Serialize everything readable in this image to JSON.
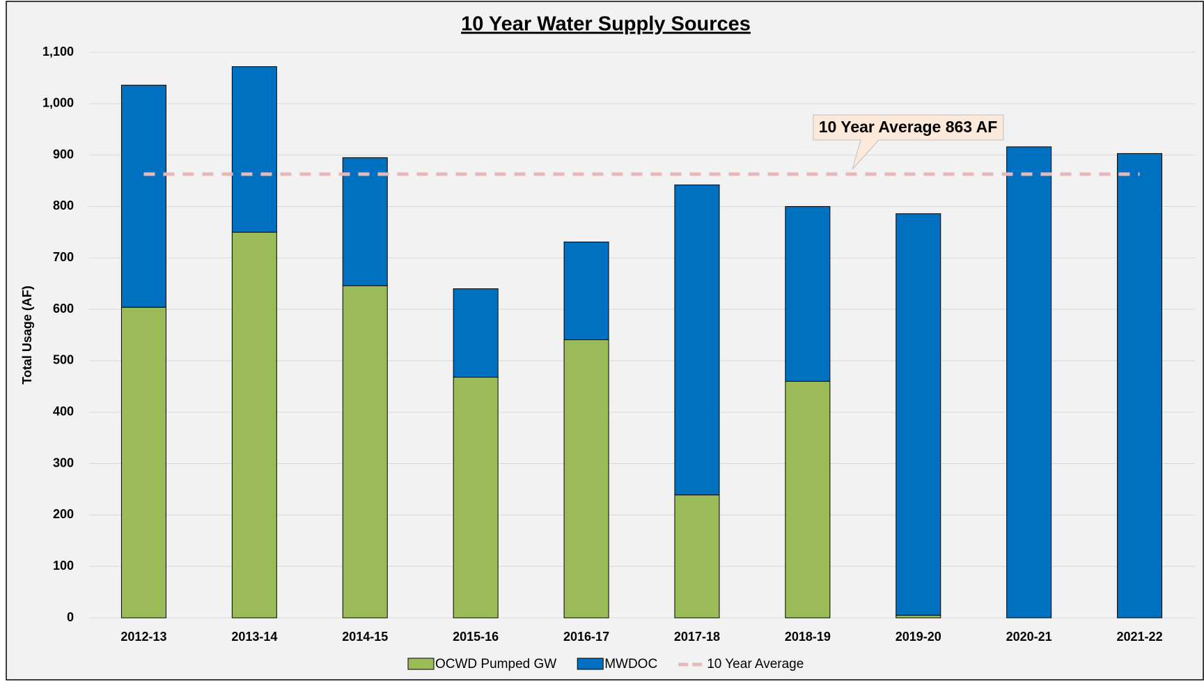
{
  "chart_data": {
    "type": "bar",
    "stacked": true,
    "title": "10 Year Water Supply Sources",
    "y_label": "Total Usage (AF)",
    "categories": [
      "2012-13",
      "2013-14",
      "2014-15",
      "2015-16",
      "2016-17",
      "2017-18",
      "2018-19",
      "2019-20",
      "2020-21",
      "2021-22"
    ],
    "series": [
      {
        "name": "OCWD Pumped GW",
        "color": "#9bbb59",
        "values": [
          604,
          750,
          646,
          468,
          541,
          239,
          460,
          5,
          0,
          0
        ]
      },
      {
        "name": "MWDOC",
        "color": "#0070c0",
        "values": [
          432,
          322,
          249,
          172,
          190,
          603,
          340,
          781,
          916,
          903
        ]
      }
    ],
    "average": {
      "name": "10 Year Average",
      "color": "#e6b9b8",
      "value": 863
    },
    "annotation": "10 Year Average 863 AF",
    "ylim": [
      0,
      1100
    ],
    "yticks": [
      0,
      100,
      200,
      300,
      400,
      500,
      600,
      700,
      800,
      900,
      {
        "value": 1000,
        "label": "1,000"
      },
      {
        "value": 1100,
        "label": "1,100"
      }
    ],
    "grid": true
  }
}
